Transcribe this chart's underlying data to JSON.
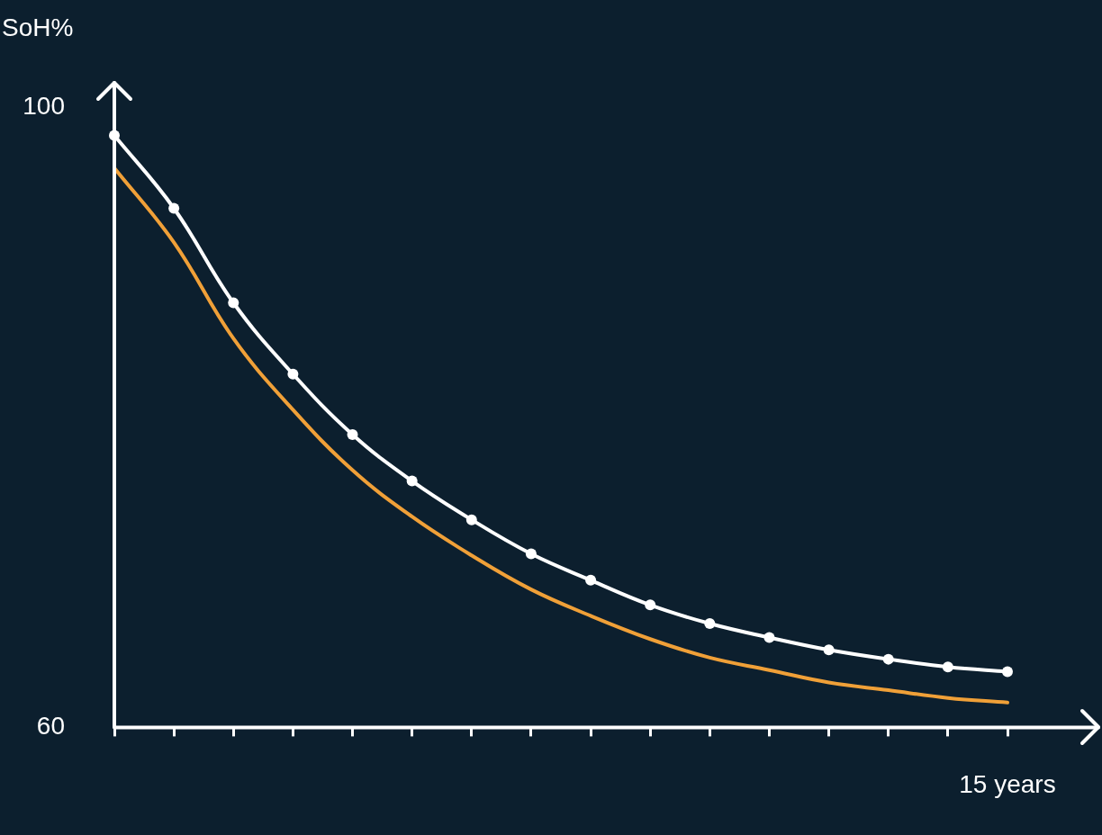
{
  "chart_data": {
    "type": "line",
    "ylabel": "SoH%",
    "categories": [
      null,
      null,
      null,
      null,
      null,
      null,
      null,
      null,
      null,
      null,
      null,
      null,
      null,
      null,
      null,
      "15 years"
    ],
    "series": [
      {
        "color": "#ffffff",
        "marker": "circle",
        "values": [
          98.2,
          93.5,
          87.4,
          82.8,
          78.9,
          75.9,
          73.4,
          71.2,
          69.5,
          67.9,
          66.7,
          65.8,
          65.0,
          64.4,
          63.9,
          63.6
        ]
      },
      {
        "color": "#f0a038",
        "marker": "none",
        "values": [
          96.1,
          91.3,
          85.1,
          80.5,
          76.6,
          73.6,
          71.1,
          68.9,
          67.2,
          65.7,
          64.5,
          63.7,
          62.9,
          62.4,
          61.9,
          61.6
        ]
      }
    ],
    "ylim": [
      60,
      101.6
    ],
    "yticks": [
      60,
      100
    ],
    "grid": false,
    "legend": false
  }
}
